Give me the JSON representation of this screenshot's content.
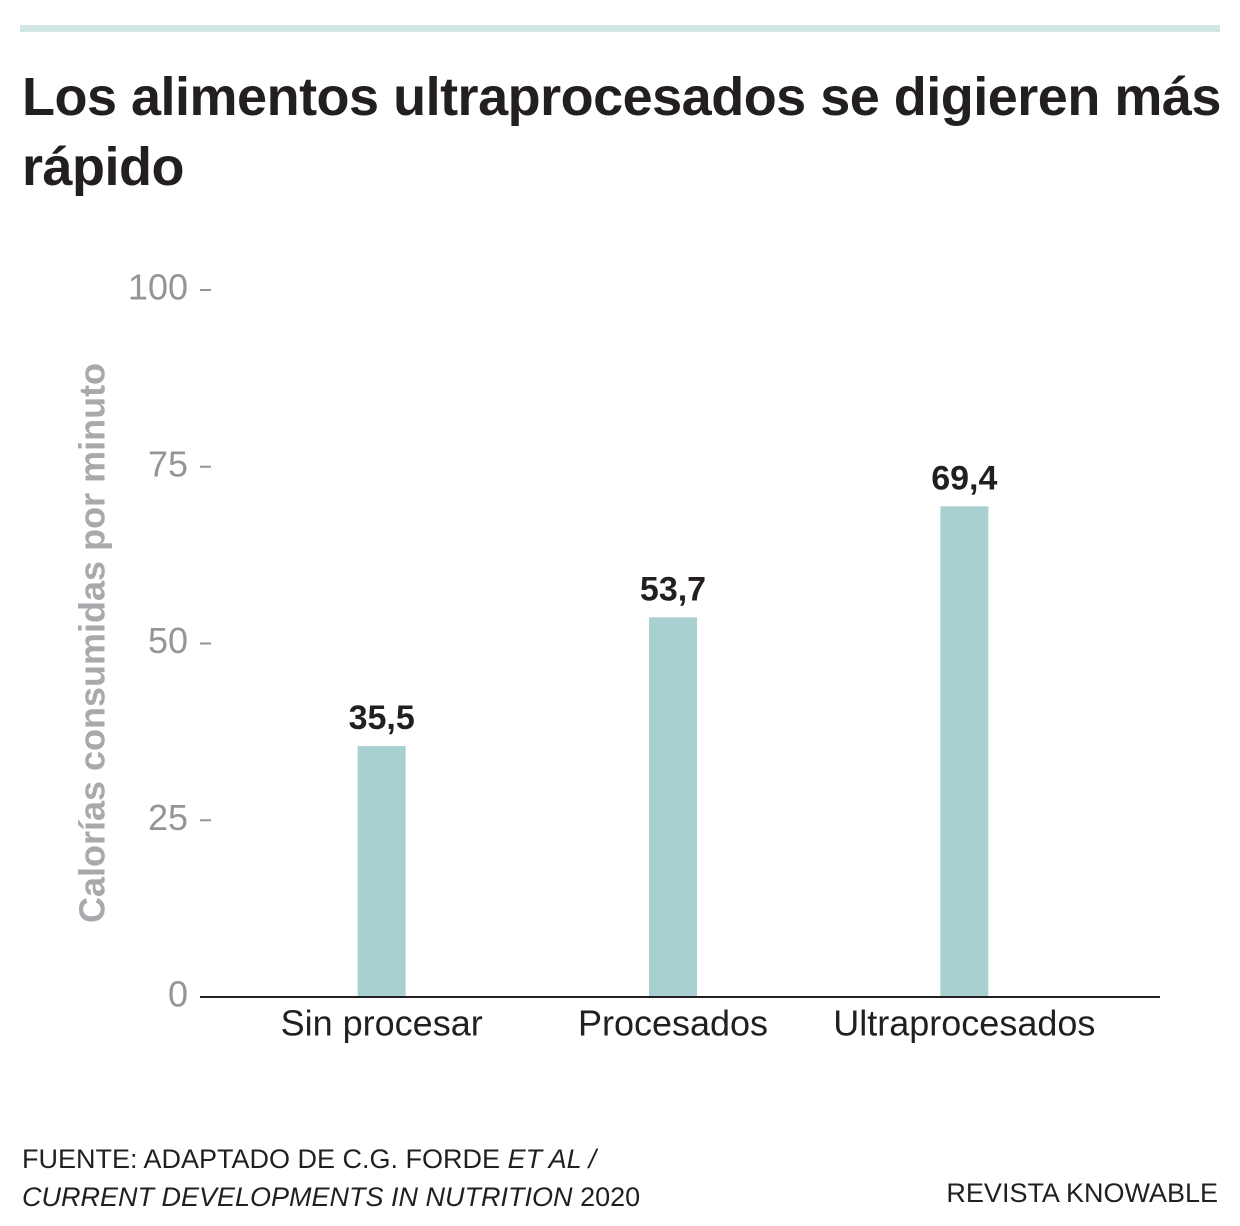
{
  "chart_data": {
    "type": "bar",
    "title": "Los alimentos ultraprocesados se digieren más rápido",
    "y_label": "Calorías consumidas por minuto",
    "categories": [
      "Sin procesar",
      "Procesados",
      "Ultraprocesados"
    ],
    "values": [
      35.5,
      53.7,
      69.4
    ],
    "value_labels": [
      "35,5",
      "53,7",
      "69,4"
    ],
    "color": "#a9d0d1",
    "ylim": [
      0,
      100
    ],
    "yticks": [
      0,
      25,
      50,
      75,
      100
    ],
    "grid": false,
    "source": [
      "FUENTE: ADAPTADO DE C.G. FORDE",
      "ET AL /",
      "CURRENT DEVELOPMENTS IN NUTRITION",
      "2020"
    ],
    "credit": "REVISTA KNOWABLE"
  }
}
